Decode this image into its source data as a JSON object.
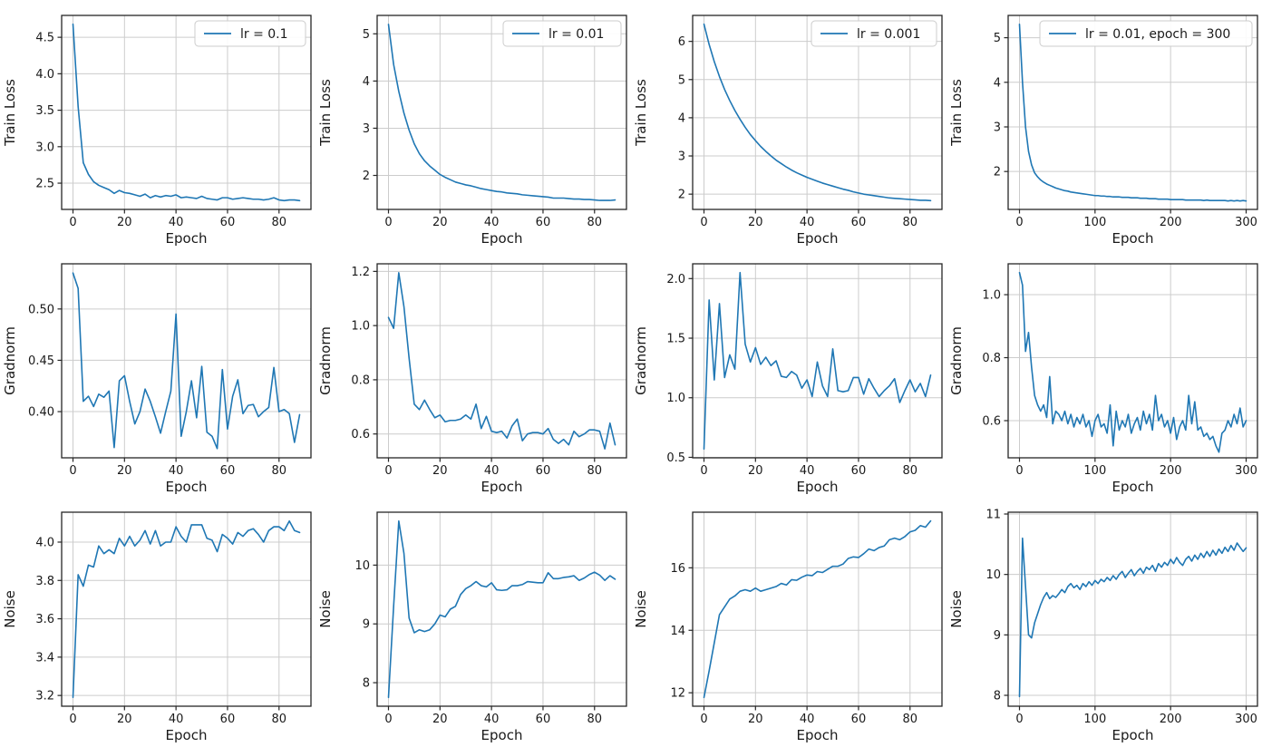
{
  "page": {
    "background": "#ffffff"
  },
  "style": {
    "line_color": "#1f77b4",
    "grid_color": "#cccccc",
    "spine_color": "#262626",
    "tick_color": "#262626",
    "text_color": "#1a1a1a",
    "legend_bg": "#ffffff",
    "legend_border": "#cccccc"
  },
  "chart_data": [
    {
      "type": "line",
      "title": "",
      "xlabel": "Epoch",
      "ylabel": "Train Loss",
      "legend": "lr = 0.1",
      "legend_position": "upper right",
      "grid": true,
      "x_end": 88,
      "xlim": [
        -4.4,
        92.4
      ],
      "ylim": [
        2.14,
        4.8
      ],
      "xticks": [
        0,
        20,
        40,
        60,
        80
      ],
      "xtick_labels": [
        "0",
        "20",
        "40",
        "60",
        "80"
      ],
      "yticks": [
        2.5,
        3.0,
        3.5,
        4.0,
        4.5
      ],
      "ytick_labels": [
        "2.5",
        "3.0",
        "3.5",
        "4.0",
        "4.5"
      ],
      "values": [
        4.68,
        3.55,
        2.78,
        2.62,
        2.52,
        2.47,
        2.44,
        2.41,
        2.36,
        2.4,
        2.37,
        2.36,
        2.34,
        2.32,
        2.35,
        2.3,
        2.33,
        2.31,
        2.33,
        2.32,
        2.34,
        2.3,
        2.31,
        2.3,
        2.29,
        2.32,
        2.29,
        2.28,
        2.27,
        2.3,
        2.3,
        2.28,
        2.29,
        2.3,
        2.29,
        2.28,
        2.28,
        2.27,
        2.28,
        2.3,
        2.27,
        2.26,
        2.27,
        2.27,
        2.26
      ]
    },
    {
      "type": "line",
      "title": "",
      "xlabel": "Epoch",
      "ylabel": "Train Loss",
      "legend": "lr = 0.01",
      "legend_position": "upper right",
      "grid": true,
      "x_end": 88,
      "xlim": [
        -4.4,
        92.4
      ],
      "ylim": [
        1.28,
        5.39
      ],
      "xticks": [
        0,
        20,
        40,
        60,
        80
      ],
      "xtick_labels": [
        "0",
        "20",
        "40",
        "60",
        "80"
      ],
      "yticks": [
        2,
        3,
        4,
        5
      ],
      "ytick_labels": [
        "2",
        "3",
        "4",
        "5"
      ],
      "values": [
        5.2,
        4.35,
        3.78,
        3.32,
        2.96,
        2.67,
        2.46,
        2.31,
        2.2,
        2.11,
        2.02,
        1.96,
        1.91,
        1.86,
        1.83,
        1.8,
        1.78,
        1.75,
        1.72,
        1.7,
        1.68,
        1.66,
        1.65,
        1.63,
        1.62,
        1.61,
        1.59,
        1.58,
        1.57,
        1.56,
        1.55,
        1.54,
        1.52,
        1.52,
        1.52,
        1.51,
        1.5,
        1.5,
        1.49,
        1.49,
        1.48,
        1.47,
        1.47,
        1.47,
        1.48
      ]
    },
    {
      "type": "line",
      "title": "",
      "xlabel": "Epoch",
      "ylabel": "Train Loss",
      "legend": "lr = 0.001",
      "legend_position": "upper right",
      "grid": true,
      "x_end": 88,
      "xlim": [
        -4.4,
        92.4
      ],
      "ylim": [
        1.6,
        6.68
      ],
      "xticks": [
        0,
        20,
        40,
        60,
        80
      ],
      "xtick_labels": [
        "0",
        "20",
        "40",
        "60",
        "80"
      ],
      "yticks": [
        2,
        3,
        4,
        5,
        6
      ],
      "ytick_labels": [
        "2",
        "3",
        "4",
        "5",
        "6"
      ],
      "values": [
        6.45,
        5.92,
        5.47,
        5.08,
        4.74,
        4.45,
        4.19,
        3.96,
        3.75,
        3.56,
        3.4,
        3.25,
        3.12,
        3.0,
        2.89,
        2.8,
        2.71,
        2.63,
        2.56,
        2.5,
        2.44,
        2.39,
        2.34,
        2.29,
        2.25,
        2.21,
        2.17,
        2.13,
        2.1,
        2.06,
        2.03,
        2.0,
        1.98,
        1.96,
        1.94,
        1.92,
        1.9,
        1.89,
        1.88,
        1.87,
        1.86,
        1.85,
        1.84,
        1.84,
        1.83
      ]
    },
    {
      "type": "line",
      "title": "",
      "xlabel": "Epoch",
      "ylabel": "Train Loss",
      "legend": "lr = 0.01, epoch = 300",
      "legend_position": "upper right",
      "grid": true,
      "x_end": 300,
      "xlim": [
        -15,
        315
      ],
      "ylim": [
        1.15,
        5.5
      ],
      "xticks": [
        0,
        100,
        200,
        300
      ],
      "xtick_labels": [
        "0",
        "100",
        "200",
        "300"
      ],
      "yticks": [
        2,
        3,
        4,
        5
      ],
      "ytick_labels": [
        "2",
        "3",
        "4",
        "5"
      ],
      "values": [
        5.3,
        4.0,
        3.0,
        2.45,
        2.15,
        1.97,
        1.88,
        1.81,
        1.76,
        1.72,
        1.69,
        1.66,
        1.63,
        1.61,
        1.59,
        1.57,
        1.56,
        1.54,
        1.53,
        1.52,
        1.51,
        1.5,
        1.49,
        1.48,
        1.47,
        1.46,
        1.46,
        1.45,
        1.45,
        1.44,
        1.44,
        1.43,
        1.43,
        1.43,
        1.42,
        1.42,
        1.42,
        1.41,
        1.41,
        1.41,
        1.4,
        1.4,
        1.4,
        1.39,
        1.39,
        1.39,
        1.38,
        1.38,
        1.38,
        1.38,
        1.37,
        1.37,
        1.37,
        1.37,
        1.37,
        1.36,
        1.36,
        1.36,
        1.36,
        1.36,
        1.36,
        1.35,
        1.36,
        1.35,
        1.35,
        1.35,
        1.35,
        1.35,
        1.35,
        1.34,
        1.35,
        1.34,
        1.35,
        1.34,
        1.35,
        1.34
      ]
    },
    {
      "type": "line",
      "title": "",
      "xlabel": "Epoch",
      "ylabel": "Gradnorm",
      "legend": null,
      "grid": true,
      "x_end": 88,
      "xlim": [
        -4.4,
        92.4
      ],
      "ylim": [
        0.355,
        0.544
      ],
      "xticks": [
        0,
        20,
        40,
        60,
        80
      ],
      "xtick_labels": [
        "0",
        "20",
        "40",
        "60",
        "80"
      ],
      "yticks": [
        0.4,
        0.45,
        0.5
      ],
      "ytick_labels": [
        "0.40",
        "0.45",
        "0.50"
      ],
      "values": [
        0.535,
        0.52,
        0.41,
        0.415,
        0.405,
        0.417,
        0.414,
        0.42,
        0.365,
        0.43,
        0.435,
        0.41,
        0.388,
        0.4,
        0.422,
        0.41,
        0.395,
        0.379,
        0.4,
        0.42,
        0.495,
        0.376,
        0.4,
        0.43,
        0.394,
        0.444,
        0.38,
        0.376,
        0.364,
        0.441,
        0.383,
        0.415,
        0.431,
        0.398,
        0.406,
        0.407,
        0.395,
        0.4,
        0.404,
        0.443,
        0.4,
        0.402,
        0.398,
        0.37,
        0.397
      ]
    },
    {
      "type": "line",
      "title": "",
      "xlabel": "Epoch",
      "ylabel": "Gradnorm",
      "legend": null,
      "grid": true,
      "x_end": 88,
      "xlim": [
        -4.4,
        92.4
      ],
      "ylim": [
        0.512,
        1.228
      ],
      "xticks": [
        0,
        20,
        40,
        60,
        80
      ],
      "xtick_labels": [
        "0",
        "20",
        "40",
        "60",
        "80"
      ],
      "yticks": [
        0.6,
        0.8,
        1.0,
        1.2
      ],
      "ytick_labels": [
        "0.6",
        "0.8",
        "1.0",
        "1.2"
      ],
      "values": [
        1.03,
        0.99,
        1.195,
        1.07,
        0.88,
        0.71,
        0.69,
        0.725,
        0.69,
        0.66,
        0.67,
        0.645,
        0.65,
        0.65,
        0.655,
        0.67,
        0.655,
        0.71,
        0.62,
        0.665,
        0.61,
        0.605,
        0.61,
        0.585,
        0.63,
        0.655,
        0.575,
        0.6,
        0.605,
        0.605,
        0.6,
        0.62,
        0.58,
        0.565,
        0.58,
        0.56,
        0.61,
        0.59,
        0.6,
        0.615,
        0.615,
        0.61,
        0.545,
        0.64,
        0.56
      ]
    },
    {
      "type": "line",
      "title": "",
      "xlabel": "Epoch",
      "ylabel": "Gradnorm",
      "legend": null,
      "grid": true,
      "x_end": 88,
      "xlim": [
        -4.4,
        92.4
      ],
      "ylim": [
        0.496,
        2.124
      ],
      "xticks": [
        0,
        20,
        40,
        60,
        80
      ],
      "xtick_labels": [
        "0",
        "20",
        "40",
        "60",
        "80"
      ],
      "yticks": [
        0.5,
        1.0,
        1.5,
        2.0
      ],
      "ytick_labels": [
        "0.5",
        "1.0",
        "1.5",
        "2.0"
      ],
      "values": [
        0.57,
        1.82,
        1.15,
        1.79,
        1.17,
        1.36,
        1.24,
        2.05,
        1.45,
        1.3,
        1.42,
        1.28,
        1.34,
        1.27,
        1.31,
        1.18,
        1.17,
        1.22,
        1.19,
        1.08,
        1.15,
        1.01,
        1.3,
        1.1,
        1.01,
        1.41,
        1.06,
        1.05,
        1.06,
        1.17,
        1.17,
        1.03,
        1.16,
        1.08,
        1.01,
        1.06,
        1.1,
        1.16,
        0.96,
        1.06,
        1.15,
        1.05,
        1.12,
        1.01,
        1.19
      ]
    },
    {
      "type": "line",
      "title": "",
      "xlabel": "Epoch",
      "ylabel": "Gradnorm",
      "legend": null,
      "grid": true,
      "x_end": 300,
      "xlim": [
        -15,
        315
      ],
      "ylim": [
        0.482,
        1.098
      ],
      "xticks": [
        0,
        100,
        200,
        300
      ],
      "xtick_labels": [
        "0",
        "100",
        "200",
        "300"
      ],
      "yticks": [
        0.6,
        0.8,
        1.0
      ],
      "ytick_labels": [
        "0.6",
        "0.8",
        "1.0"
      ],
      "values": [
        1.07,
        1.03,
        0.82,
        0.88,
        0.77,
        0.68,
        0.65,
        0.63,
        0.65,
        0.61,
        0.74,
        0.59,
        0.63,
        0.62,
        0.6,
        0.63,
        0.59,
        0.62,
        0.58,
        0.61,
        0.59,
        0.62,
        0.58,
        0.6,
        0.55,
        0.6,
        0.62,
        0.58,
        0.59,
        0.56,
        0.65,
        0.52,
        0.63,
        0.57,
        0.6,
        0.58,
        0.62,
        0.56,
        0.59,
        0.61,
        0.57,
        0.63,
        0.59,
        0.62,
        0.57,
        0.68,
        0.6,
        0.62,
        0.58,
        0.6,
        0.56,
        0.61,
        0.54,
        0.58,
        0.6,
        0.57,
        0.68,
        0.59,
        0.66,
        0.57,
        0.58,
        0.55,
        0.56,
        0.54,
        0.55,
        0.52,
        0.5,
        0.56,
        0.57,
        0.6,
        0.58,
        0.62,
        0.59,
        0.64,
        0.58,
        0.6
      ]
    },
    {
      "type": "line",
      "title": "",
      "xlabel": "Epoch",
      "ylabel": "Noise",
      "legend": null,
      "grid": true,
      "x_end": 88,
      "xlim": [
        -4.4,
        92.4
      ],
      "ylim": [
        3.144,
        4.156
      ],
      "xticks": [
        0,
        20,
        40,
        60,
        80
      ],
      "xtick_labels": [
        "0",
        "20",
        "40",
        "60",
        "80"
      ],
      "yticks": [
        3.2,
        3.4,
        3.6,
        3.8,
        4.0
      ],
      "ytick_labels": [
        "3.2",
        "3.4",
        "3.6",
        "3.8",
        "4.0"
      ],
      "values": [
        3.19,
        3.83,
        3.77,
        3.88,
        3.87,
        3.98,
        3.94,
        3.96,
        3.94,
        4.02,
        3.98,
        4.03,
        3.98,
        4.01,
        4.06,
        3.99,
        4.06,
        3.98,
        4.0,
        4.0,
        4.08,
        4.03,
        4.0,
        4.09,
        4.09,
        4.09,
        4.02,
        4.01,
        3.95,
        4.04,
        4.02,
        3.99,
        4.05,
        4.03,
        4.06,
        4.07,
        4.04,
        4.0,
        4.06,
        4.08,
        4.08,
        4.06,
        4.11,
        4.06,
        4.05
      ]
    },
    {
      "type": "line",
      "title": "",
      "xlabel": "Epoch",
      "ylabel": "Noise",
      "legend": null,
      "grid": true,
      "x_end": 88,
      "xlim": [
        -4.4,
        92.4
      ],
      "ylim": [
        7.6,
        10.9
      ],
      "xticks": [
        0,
        20,
        40,
        60,
        80
      ],
      "xtick_labels": [
        "0",
        "20",
        "40",
        "60",
        "80"
      ],
      "yticks": [
        8,
        9,
        10
      ],
      "ytick_labels": [
        "8",
        "9",
        "10"
      ],
      "values": [
        7.75,
        9.3,
        10.75,
        10.2,
        9.1,
        8.85,
        8.9,
        8.87,
        8.9,
        9.0,
        9.15,
        9.12,
        9.25,
        9.3,
        9.5,
        9.6,
        9.65,
        9.72,
        9.65,
        9.63,
        9.7,
        9.58,
        9.57,
        9.58,
        9.65,
        9.65,
        9.67,
        9.72,
        9.71,
        9.7,
        9.7,
        9.87,
        9.77,
        9.77,
        9.79,
        9.8,
        9.82,
        9.74,
        9.78,
        9.84,
        9.88,
        9.83,
        9.74,
        9.82,
        9.76
      ]
    },
    {
      "type": "line",
      "title": "",
      "xlabel": "Epoch",
      "ylabel": "Noise",
      "legend": null,
      "grid": true,
      "x_end": 88,
      "xlim": [
        -4.4,
        92.4
      ],
      "ylim": [
        11.57,
        17.78
      ],
      "xticks": [
        0,
        20,
        40,
        60,
        80
      ],
      "xtick_labels": [
        "0",
        "20",
        "40",
        "60",
        "80"
      ],
      "yticks": [
        12,
        14,
        16
      ],
      "ytick_labels": [
        "12",
        "14",
        "16"
      ],
      "values": [
        11.85,
        12.7,
        13.6,
        14.5,
        14.75,
        15.0,
        15.1,
        15.25,
        15.3,
        15.25,
        15.35,
        15.25,
        15.3,
        15.35,
        15.4,
        15.5,
        15.45,
        15.62,
        15.6,
        15.7,
        15.77,
        15.75,
        15.88,
        15.85,
        15.95,
        16.05,
        16.05,
        16.12,
        16.3,
        16.35,
        16.33,
        16.45,
        16.6,
        16.55,
        16.65,
        16.7,
        16.9,
        16.95,
        16.9,
        17.0,
        17.15,
        17.2,
        17.35,
        17.3,
        17.5
      ]
    },
    {
      "type": "line",
      "title": "",
      "xlabel": "Epoch",
      "ylabel": "Noise",
      "legend": null,
      "grid": true,
      "x_end": 300,
      "xlim": [
        -15,
        315
      ],
      "ylim": [
        7.82,
        11.03
      ],
      "xticks": [
        0,
        100,
        200,
        300
      ],
      "xtick_labels": [
        "0",
        "100",
        "200",
        "300"
      ],
      "yticks": [
        8,
        9,
        10,
        11
      ],
      "ytick_labels": [
        "8",
        "9",
        "10",
        "11"
      ],
      "values": [
        7.98,
        10.6,
        9.8,
        9.0,
        8.95,
        9.2,
        9.35,
        9.5,
        9.62,
        9.7,
        9.6,
        9.65,
        9.62,
        9.68,
        9.75,
        9.7,
        9.8,
        9.85,
        9.78,
        9.82,
        9.75,
        9.85,
        9.8,
        9.88,
        9.82,
        9.9,
        9.85,
        9.92,
        9.88,
        9.95,
        9.9,
        9.98,
        9.92,
        10.0,
        10.05,
        9.95,
        10.02,
        10.08,
        9.98,
        10.05,
        10.1,
        10.02,
        10.12,
        10.08,
        10.15,
        10.05,
        10.18,
        10.12,
        10.2,
        10.15,
        10.25,
        10.18,
        10.28,
        10.2,
        10.15,
        10.25,
        10.3,
        10.22,
        10.32,
        10.25,
        10.35,
        10.28,
        10.38,
        10.3,
        10.4,
        10.32,
        10.42,
        10.35,
        10.45,
        10.38,
        10.48,
        10.4,
        10.52,
        10.45,
        10.38,
        10.44
      ]
    }
  ]
}
